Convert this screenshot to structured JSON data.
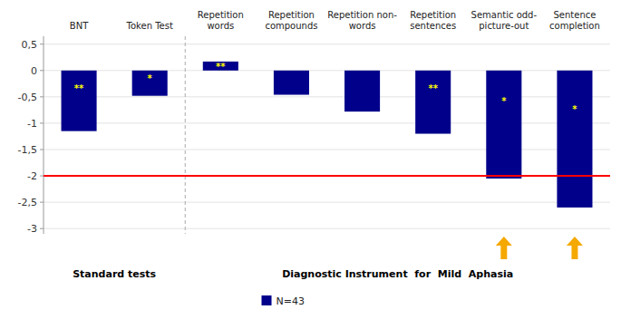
{
  "chart_data": {
    "type": "bar",
    "categories": [
      "BNT",
      "Token Test",
      "Repetition\nwords",
      "Repetition\ncompounds",
      "Repetition non-\nwords",
      "Repetition\nsentences",
      "Semantic odd-\npicture-out",
      "Sentence\ncompletion"
    ],
    "series": [
      {
        "name": "N=43",
        "color": "#00008B",
        "values": [
          -1.15,
          -0.48,
          0.17,
          -0.46,
          -0.78,
          -1.2,
          -2.05,
          -2.6
        ],
        "significance": [
          "**",
          "*",
          "**",
          null,
          null,
          "**",
          "*",
          "*"
        ]
      }
    ],
    "ylim": [
      -3.1,
      0.65
    ],
    "yticks": [
      {
        "value": 0.5,
        "label": "0,5"
      },
      0,
      {
        "value": -0.5,
        "label": "-0,5"
      },
      -1,
      {
        "value": -1.5,
        "label": "-1,5"
      },
      -2,
      {
        "value": -2.5,
        "label": "-2,5"
      },
      -3
    ],
    "reference_line": {
      "value": -2.0,
      "color": "red"
    },
    "groups": [
      {
        "label": "Standard tests",
        "categories": [
          "BNT",
          "Token Test"
        ]
      },
      {
        "label": "Diagnostic Instrument  for  Mild  Aphasia",
        "categories": [
          "Repetition\nwords",
          "Repetition\ncompounds",
          "Repetition non-\nwords",
          "Repetition\nsentences",
          "Semantic odd-\npicture-out",
          "Sentence\ncompletion"
        ]
      }
    ],
    "arrows": {
      "categories": [
        "Semantic odd-\npicture-out",
        "Sentence\ncompletion"
      ],
      "color": "#F5A800"
    },
    "grid": true,
    "legend": "bottom"
  }
}
